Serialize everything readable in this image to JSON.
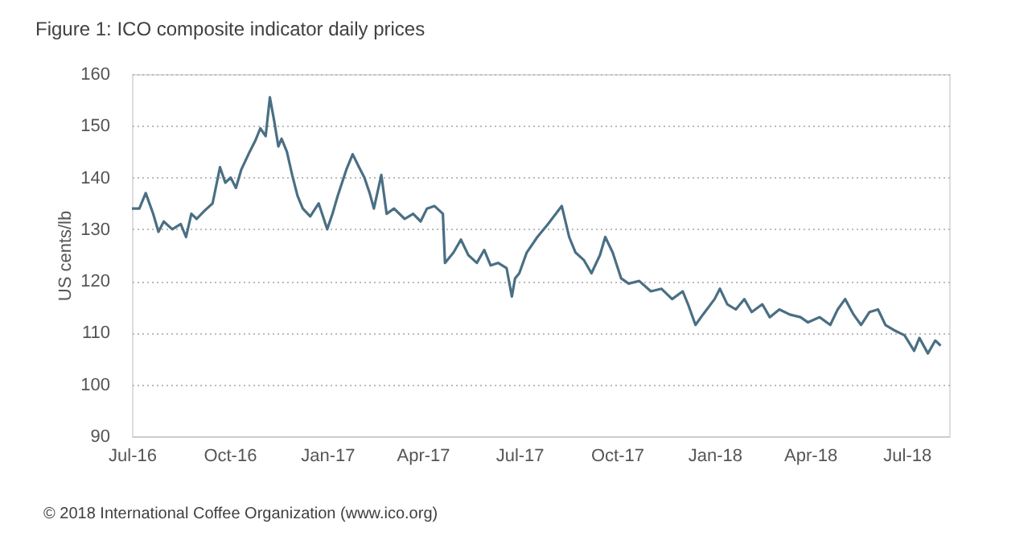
{
  "chart_data": {
    "type": "line",
    "title": "Figure 1: ICO composite indicator daily prices",
    "ylabel": "US cents/lb",
    "annotations": [
      "© 2018 International Coffee Organization (www.ico.org)"
    ],
    "series": [
      {
        "color": "#4a6f84",
        "x": [
          "2016-07-01",
          "2016-07-08",
          "2016-07-14",
          "2016-07-21",
          "2016-07-26",
          "2016-07-31",
          "2016-08-08",
          "2016-08-16",
          "2016-08-21",
          "2016-08-26",
          "2016-08-31",
          "2016-09-07",
          "2016-09-15",
          "2016-09-22",
          "2016-09-27",
          "2016-10-02",
          "2016-10-07",
          "2016-10-12",
          "2016-10-20",
          "2016-10-25",
          "2016-10-30",
          "2016-11-04",
          "2016-11-08",
          "2016-11-12",
          "2016-11-16",
          "2016-11-19",
          "2016-11-24",
          "2016-11-29",
          "2016-12-04",
          "2016-12-09",
          "2016-12-16",
          "2016-12-24",
          "2017-01-01",
          "2017-01-06",
          "2017-01-11",
          "2017-01-19",
          "2017-01-25",
          "2017-01-31",
          "2017-02-05",
          "2017-02-10",
          "2017-02-14",
          "2017-02-21",
          "2017-02-26",
          "2017-03-05",
          "2017-03-15",
          "2017-03-23",
          "2017-03-30",
          "2017-04-05",
          "2017-04-12",
          "2017-04-20",
          "2017-04-22",
          "2017-04-30",
          "2017-05-07",
          "2017-05-14",
          "2017-05-22",
          "2017-05-29",
          "2017-06-04",
          "2017-06-11",
          "2017-06-19",
          "2017-06-24",
          "2017-06-27",
          "2017-07-01",
          "2017-07-08",
          "2017-07-18",
          "2017-07-28",
          "2017-08-10",
          "2017-08-17",
          "2017-08-23",
          "2017-08-31",
          "2017-09-07",
          "2017-09-15",
          "2017-09-20",
          "2017-09-27",
          "2017-10-05",
          "2017-10-12",
          "2017-10-22",
          "2017-11-02",
          "2017-11-12",
          "2017-11-22",
          "2017-12-02",
          "2017-12-07",
          "2017-12-14",
          "2017-12-21",
          "2018-01-01",
          "2018-01-06",
          "2018-01-13",
          "2018-01-21",
          "2018-01-29",
          "2018-02-05",
          "2018-02-15",
          "2018-02-22",
          "2018-03-03",
          "2018-03-13",
          "2018-03-23",
          "2018-03-30",
          "2018-04-10",
          "2018-04-20",
          "2018-04-27",
          "2018-05-04",
          "2018-05-12",
          "2018-05-19",
          "2018-05-27",
          "2018-06-04",
          "2018-06-11",
          "2018-06-19",
          "2018-06-29",
          "2018-07-08",
          "2018-07-13",
          "2018-07-21",
          "2018-07-28",
          "2018-08-02"
        ],
        "values": [
          134,
          134,
          137,
          133,
          129.5,
          131.5,
          130,
          131,
          128.5,
          133,
          132,
          133.5,
          135,
          142,
          139,
          140,
          138,
          141.5,
          145,
          147,
          149.5,
          148,
          155.5,
          151,
          146,
          147.5,
          145,
          140.5,
          136.5,
          134,
          132.5,
          135,
          130,
          133,
          136.5,
          141.5,
          144.5,
          142,
          140,
          137,
          134,
          140.5,
          133,
          134,
          132,
          133,
          131.5,
          134,
          134.5,
          133,
          123.5,
          125.5,
          128,
          125,
          123.5,
          126,
          123,
          123.5,
          122.5,
          117,
          120.5,
          121.5,
          125.5,
          128.5,
          131,
          134.5,
          128.5,
          125.5,
          124,
          121.5,
          125,
          128.5,
          125.5,
          120.5,
          119.5,
          120,
          118,
          118.5,
          116.5,
          118,
          115.5,
          111.5,
          113.5,
          116.5,
          118.5,
          115.5,
          114.5,
          116.5,
          114,
          115.5,
          113,
          114.5,
          113.5,
          113,
          112,
          113,
          111.5,
          114.5,
          116.5,
          113.5,
          111.5,
          114,
          114.5,
          111.5,
          110.5,
          109.5,
          106.5,
          109,
          106,
          108.5,
          107.5
        ]
      }
    ],
    "xlim": [
      "2016-07-01",
      "2018-08-10"
    ],
    "xticks": [
      {
        "value": "2016-07-01",
        "label": "Jul-16"
      },
      {
        "value": "2016-10-01",
        "label": "Oct-16"
      },
      {
        "value": "2017-01-01",
        "label": "Jan-17"
      },
      {
        "value": "2017-04-01",
        "label": "Apr-17"
      },
      {
        "value": "2017-07-01",
        "label": "Jul-17"
      },
      {
        "value": "2017-10-01",
        "label": "Oct-17"
      },
      {
        "value": "2018-01-01",
        "label": "Jan-18"
      },
      {
        "value": "2018-04-01",
        "label": "Apr-18"
      },
      {
        "value": "2018-07-01",
        "label": "Jul-18"
      }
    ],
    "ylim": [
      90,
      160
    ],
    "yticks": [
      90,
      100,
      110,
      120,
      130,
      140,
      150,
      160
    ],
    "grid": "y",
    "line_style": "solid",
    "marker": "none"
  }
}
